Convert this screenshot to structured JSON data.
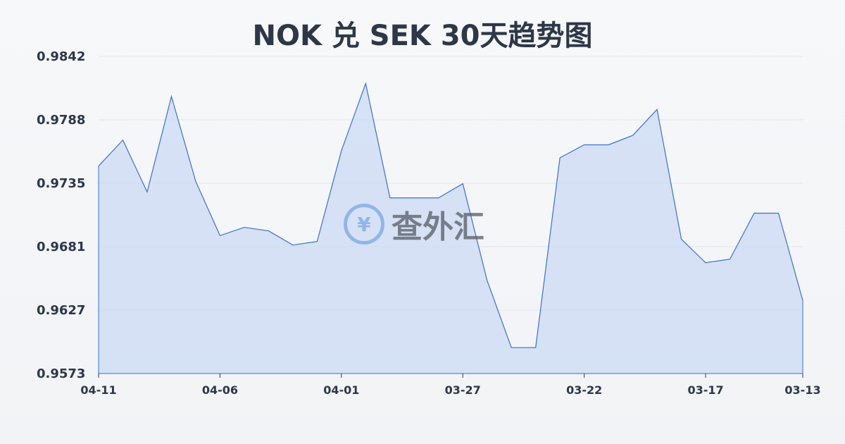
{
  "chart_data": {
    "type": "area",
    "title": "NOK 兑 SEK 30天趋势图",
    "xlabel": "",
    "ylabel": "",
    "ylim": [
      0.9573,
      0.9842
    ],
    "y_ticks": [
      "0.9842",
      "0.9788",
      "0.9735",
      "0.9681",
      "0.9627",
      "0.9573"
    ],
    "x_ticks": [
      "04-11",
      "04-06",
      "04-01",
      "03-27",
      "03-22",
      "03-17",
      "03-13"
    ],
    "grid": true,
    "x": [
      "04-11",
      "04-10",
      "04-09",
      "04-08",
      "04-07",
      "04-06",
      "04-05",
      "04-04",
      "04-03",
      "04-02",
      "04-01",
      "03-31",
      "03-30",
      "03-29",
      "03-28",
      "03-27",
      "03-26",
      "03-25",
      "03-24",
      "03-23",
      "03-22",
      "03-21",
      "03-20",
      "03-19",
      "03-18",
      "03-17",
      "03-16",
      "03-15",
      "03-14",
      "03-13"
    ],
    "values": [
      0.9749,
      0.9771,
      0.9727,
      0.9808,
      0.9736,
      0.969,
      0.9697,
      0.9694,
      0.9682,
      0.9685,
      0.9762,
      0.9819,
      0.9722,
      0.9722,
      0.9722,
      0.9734,
      0.9652,
      0.9595,
      0.9595,
      0.9756,
      0.9767,
      0.9767,
      0.9775,
      0.9797,
      0.9687,
      0.9667,
      0.967,
      0.9709,
      0.9709,
      0.9635
    ],
    "colors": {
      "line": "#3b6fd1",
      "fill": "#c9d8f3",
      "grid": "#e3e6ea"
    }
  },
  "watermark": {
    "symbol": "¥",
    "text": "查外汇"
  }
}
